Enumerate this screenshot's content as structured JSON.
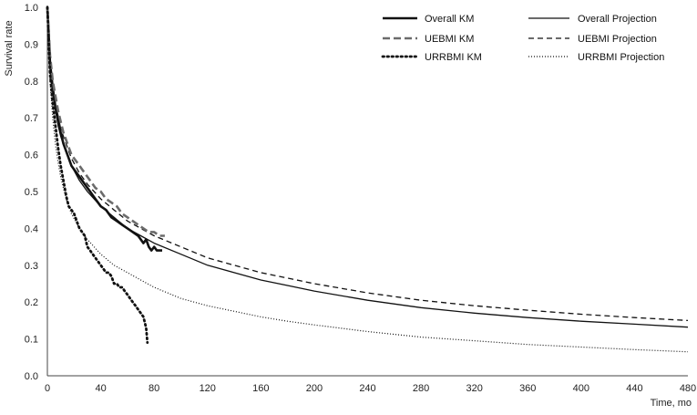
{
  "chart_data": {
    "type": "line",
    "title": "",
    "xlabel": "Time, mo",
    "ylabel": "Survival rate",
    "xlim": [
      0,
      480
    ],
    "ylim": [
      0,
      1.0
    ],
    "xticks": [
      0,
      40,
      80,
      120,
      160,
      200,
      240,
      280,
      320,
      360,
      400,
      440,
      480
    ],
    "yticks": [
      "0.0",
      "0.1",
      "0.2",
      "0.3",
      "0.4",
      "0.5",
      "0.6",
      "0.7",
      "0.8",
      "0.9",
      "1.0"
    ],
    "grid": false,
    "legend_position": "top-right",
    "series": [
      {
        "name": "Overall KM",
        "style": "solid-thick",
        "color": "#111111",
        "x": [
          0,
          2,
          4,
          6,
          8,
          10,
          12,
          15,
          18,
          20,
          24,
          28,
          32,
          36,
          40,
          44,
          48,
          52,
          56,
          60,
          64,
          68,
          70,
          72,
          74,
          76,
          78,
          80,
          82,
          84,
          86
        ],
        "y": [
          1.0,
          0.85,
          0.78,
          0.73,
          0.7,
          0.66,
          0.63,
          0.6,
          0.57,
          0.56,
          0.54,
          0.52,
          0.5,
          0.48,
          0.46,
          0.45,
          0.43,
          0.42,
          0.41,
          0.4,
          0.39,
          0.38,
          0.37,
          0.36,
          0.37,
          0.35,
          0.34,
          0.35,
          0.34,
          0.34,
          0.34
        ]
      },
      {
        "name": "UEBMI KM",
        "style": "dashed-thick",
        "color": "#6b6b6b",
        "x": [
          0,
          2,
          4,
          6,
          8,
          10,
          12,
          15,
          18,
          20,
          24,
          28,
          32,
          36,
          40,
          44,
          48,
          52,
          56,
          60,
          64,
          68,
          72,
          76,
          80,
          84,
          88
        ],
        "y": [
          1.0,
          0.87,
          0.8,
          0.76,
          0.72,
          0.69,
          0.66,
          0.63,
          0.6,
          0.59,
          0.57,
          0.55,
          0.53,
          0.51,
          0.5,
          0.48,
          0.47,
          0.46,
          0.44,
          0.43,
          0.42,
          0.41,
          0.4,
          0.39,
          0.39,
          0.38,
          0.38
        ]
      },
      {
        "name": "URRBMI KM",
        "style": "dotted-thick",
        "color": "#111111",
        "x": [
          0,
          2,
          4,
          6,
          8,
          10,
          12,
          14,
          16,
          18,
          20,
          22,
          24,
          26,
          28,
          30,
          32,
          34,
          36,
          38,
          40,
          42,
          44,
          46,
          48,
          50,
          52,
          54,
          56,
          58,
          60,
          62,
          64,
          66,
          68,
          70,
          72,
          74,
          75
        ],
        "y": [
          1.0,
          0.82,
          0.74,
          0.68,
          0.62,
          0.57,
          0.53,
          0.49,
          0.46,
          0.45,
          0.44,
          0.42,
          0.4,
          0.39,
          0.38,
          0.35,
          0.34,
          0.33,
          0.32,
          0.31,
          0.3,
          0.29,
          0.28,
          0.28,
          0.27,
          0.25,
          0.25,
          0.24,
          0.24,
          0.23,
          0.22,
          0.21,
          0.2,
          0.19,
          0.18,
          0.17,
          0.16,
          0.13,
          0.09
        ]
      },
      {
        "name": "Overall Projection",
        "style": "solid-thin",
        "color": "#111111",
        "x": [
          0,
          2,
          4,
          6,
          8,
          10,
          14,
          18,
          24,
          30,
          40,
          50,
          60,
          70,
          80,
          100,
          120,
          140,
          160,
          180,
          200,
          240,
          280,
          320,
          360,
          400,
          440,
          480
        ],
        "y": [
          1.0,
          0.85,
          0.77,
          0.72,
          0.68,
          0.65,
          0.61,
          0.57,
          0.53,
          0.5,
          0.46,
          0.43,
          0.4,
          0.38,
          0.36,
          0.33,
          0.3,
          0.28,
          0.26,
          0.245,
          0.23,
          0.205,
          0.185,
          0.17,
          0.158,
          0.148,
          0.14,
          0.132
        ]
      },
      {
        "name": "UEBMI Projection",
        "style": "dashed-thin",
        "color": "#111111",
        "x": [
          0,
          2,
          4,
          6,
          8,
          10,
          14,
          18,
          24,
          30,
          40,
          50,
          60,
          70,
          80,
          100,
          120,
          140,
          160,
          180,
          200,
          240,
          280,
          320,
          360,
          400,
          440,
          480
        ],
        "y": [
          1.0,
          0.86,
          0.79,
          0.74,
          0.7,
          0.67,
          0.63,
          0.59,
          0.55,
          0.52,
          0.48,
          0.45,
          0.42,
          0.4,
          0.38,
          0.35,
          0.32,
          0.3,
          0.28,
          0.265,
          0.25,
          0.225,
          0.205,
          0.19,
          0.178,
          0.167,
          0.158,
          0.15
        ]
      },
      {
        "name": "URRBMI Projection",
        "style": "dotted-thin",
        "color": "#111111",
        "x": [
          0,
          2,
          4,
          6,
          8,
          10,
          14,
          18,
          24,
          30,
          40,
          50,
          60,
          70,
          80,
          100,
          120,
          140,
          160,
          180,
          200,
          240,
          280,
          320,
          360,
          400,
          440,
          480
        ],
        "y": [
          1.0,
          0.8,
          0.7,
          0.63,
          0.58,
          0.54,
          0.48,
          0.44,
          0.4,
          0.37,
          0.33,
          0.3,
          0.28,
          0.26,
          0.24,
          0.21,
          0.19,
          0.175,
          0.16,
          0.148,
          0.138,
          0.12,
          0.105,
          0.095,
          0.085,
          0.078,
          0.071,
          0.065
        ]
      }
    ]
  }
}
